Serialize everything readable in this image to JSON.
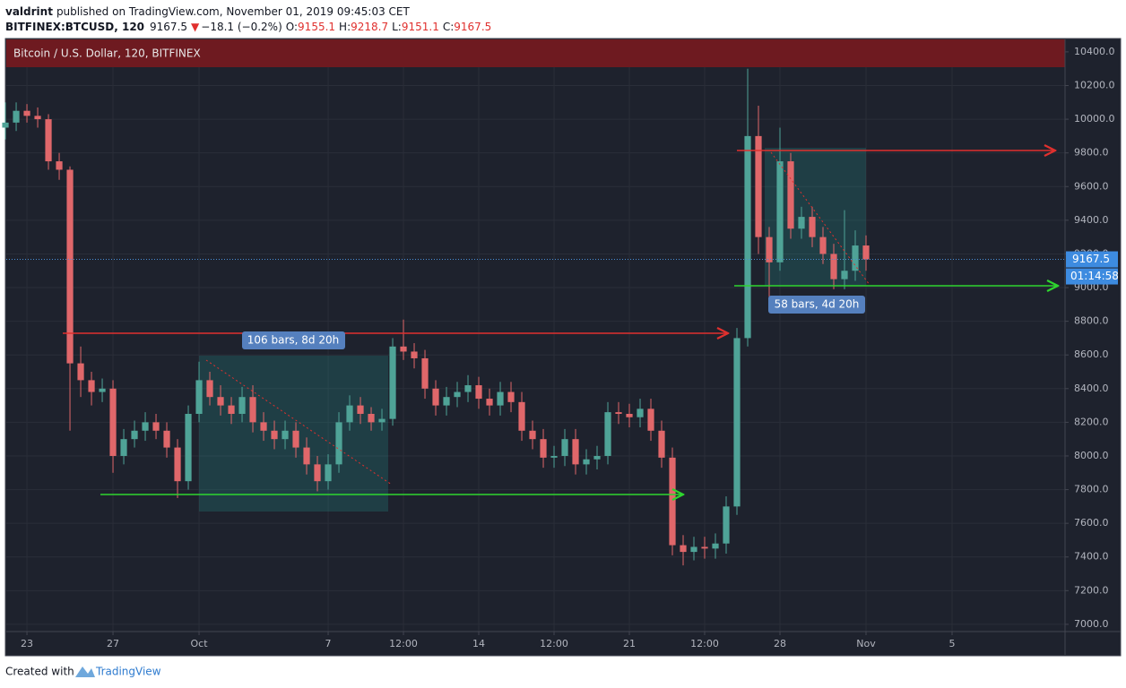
{
  "header": {
    "author": "valdrint",
    "published": "published on TradingView.com, November 01, 2019 09:45:03 CET",
    "symbol": "BITFINEX:BTCUSD, 120",
    "last": "9167.5",
    "arrow": "▼",
    "change": "−18.1 (−0.2%)",
    "ohlc": [
      [
        "O:",
        "9155.1"
      ],
      [
        "H:",
        "9218.7"
      ],
      [
        "L:",
        "9151.1"
      ],
      [
        "C:",
        "9167.5"
      ]
    ]
  },
  "footer": {
    "created": "Created with",
    "brand": "TradingView"
  },
  "chart_data": {
    "type": "candlestick",
    "title": "Bitcoin / U.S. Dollar, 120, BITFINEX",
    "up_color": "#4fa397",
    "down_color": "#e0676a",
    "grid": true,
    "last_price": 9167.5,
    "countdown": "01:14:58",
    "annotations": [
      "106 bars, 8d 20h",
      "58 bars, 4d 20h"
    ],
    "x": [
      -1,
      -0.5,
      0,
      0.5,
      1,
      1.5,
      2,
      2.5,
      3,
      3.5,
      4,
      4.5,
      5,
      5.5,
      6,
      6.5,
      7,
      7.5,
      8,
      8.5,
      9,
      9.5,
      10,
      10.5,
      11,
      11.5,
      12,
      12.5,
      13,
      13.5,
      14,
      14.5,
      15,
      15.5,
      16,
      16.5,
      17,
      17.5,
      18,
      18.5,
      19,
      19.5,
      20,
      20.5,
      21,
      21.5,
      22,
      22.5,
      23,
      23.5,
      24,
      24.5,
      25,
      25.5,
      26,
      26.5,
      27,
      27.5,
      28,
      28.5,
      29,
      29.5,
      30,
      30.5,
      31,
      31.5,
      32,
      32.5,
      33,
      33.5,
      34,
      34.5,
      35,
      35.5,
      36,
      36.5,
      37,
      37.5,
      38,
      38.5,
      39
    ],
    "open": [
      9950,
      9980,
      10050,
      10020,
      10000,
      9750,
      9700,
      8550,
      8450,
      8380,
      8400,
      8000,
      8100,
      8150,
      8200,
      8150,
      8050,
      7850,
      8250,
      8450,
      8350,
      8300,
      8250,
      8350,
      8200,
      8150,
      8100,
      8150,
      8050,
      7950,
      7850,
      7950,
      8200,
      8300,
      8250,
      8200,
      8220,
      8650,
      8620,
      8580,
      8400,
      8300,
      8350,
      8380,
      8420,
      8340,
      8300,
      8380,
      8320,
      8150,
      8100,
      7990,
      8000,
      8100,
      7950,
      7980,
      8000,
      8260,
      8250,
      8230,
      8280,
      8150,
      7990,
      7470,
      7430,
      7460,
      7450,
      7480,
      7700,
      8700,
      9900,
      9300,
      9150,
      9750,
      9350,
      9420,
      9300,
      9200,
      9050,
      9100,
      9250
    ],
    "high": [
      10100,
      10100,
      10090,
      10070,
      10030,
      9800,
      9720,
      8650,
      8500,
      8460,
      8450,
      8160,
      8210,
      8260,
      8250,
      8200,
      8100,
      8300,
      8560,
      8500,
      8420,
      8350,
      8410,
      8420,
      8260,
      8210,
      8210,
      8200,
      8110,
      8000,
      8010,
      8260,
      8360,
      8350,
      8290,
      8280,
      8700,
      8810,
      8670,
      8630,
      8450,
      8410,
      8440,
      8480,
      8470,
      8400,
      8440,
      8440,
      8380,
      8210,
      8160,
      8060,
      8160,
      8160,
      8040,
      8060,
      8320,
      8320,
      8310,
      8340,
      8340,
      8210,
      8050,
      7530,
      7520,
      7520,
      7540,
      7760,
      8760,
      10300,
      10080,
      9360,
      9950,
      9800,
      9480,
      9480,
      9360,
      9260,
      9460,
      9340,
      9310
    ],
    "low": [
      9880,
      9930,
      9980,
      9950,
      9700,
      9640,
      8150,
      8350,
      8300,
      8320,
      7900,
      7950,
      8050,
      8090,
      8100,
      7990,
      7750,
      7800,
      8200,
      8300,
      8240,
      8190,
      8200,
      8140,
      8090,
      8040,
      8040,
      7990,
      7890,
      7790,
      7800,
      7900,
      8150,
      8190,
      8150,
      8150,
      8180,
      8570,
      8520,
      8340,
      8240,
      8240,
      8290,
      8320,
      8280,
      8240,
      8240,
      8260,
      8090,
      8040,
      7930,
      7930,
      7940,
      7890,
      7890,
      7920,
      7950,
      8190,
      8170,
      8170,
      8090,
      7930,
      7410,
      7350,
      7380,
      7390,
      7390,
      7420,
      7650,
      8650,
      9200,
      8900,
      9100,
      9290,
      9290,
      9240,
      9140,
      8990,
      8990,
      9040,
      9100
    ],
    "close": [
      9980,
      10050,
      10020,
      10000,
      9750,
      9700,
      8550,
      8450,
      8380,
      8400,
      8000,
      8100,
      8150,
      8200,
      8150,
      8050,
      7850,
      8250,
      8450,
      8350,
      8300,
      8250,
      8350,
      8200,
      8150,
      8100,
      8150,
      8050,
      7950,
      7850,
      7950,
      8200,
      8300,
      8250,
      8200,
      8220,
      8650,
      8620,
      8580,
      8400,
      8300,
      8350,
      8380,
      8420,
      8340,
      8300,
      8380,
      8320,
      8150,
      8100,
      7990,
      8000,
      8100,
      7950,
      7980,
      8000,
      8260,
      8250,
      8230,
      8280,
      8150,
      7990,
      7470,
      7430,
      7460,
      7450,
      7480,
      7700,
      8700,
      9900,
      9300,
      9150,
      9750,
      9350,
      9420,
      9300,
      9200,
      9050,
      9100,
      9250,
      9167.5
    ],
    "xlim": [
      -0.96,
      48.25
    ],
    "ylim": [
      6957,
      10474
    ],
    "xticks": [
      {
        "value": 0,
        "label": "23"
      },
      {
        "value": 4,
        "label": "27"
      },
      {
        "value": 8,
        "label": "Oct"
      },
      {
        "value": 14,
        "label": "7"
      },
      {
        "value": 17.5,
        "label": "12:00"
      },
      {
        "value": 21,
        "label": "14"
      },
      {
        "value": 24.5,
        "label": "12:00"
      },
      {
        "value": 28,
        "label": "21"
      },
      {
        "value": 31.5,
        "label": "12:00"
      },
      {
        "value": 35,
        "label": "28"
      },
      {
        "value": 39,
        "label": "Nov"
      },
      {
        "value": 43,
        "label": "5"
      }
    ],
    "yticks": [
      {
        "value": 7000,
        "label": "7000.0"
      },
      {
        "value": 7200,
        "label": "7200.0"
      },
      {
        "value": 7400,
        "label": "7400.0"
      },
      {
        "value": 7600,
        "label": "7600.0"
      },
      {
        "value": 7800,
        "label": "7800.0"
      },
      {
        "value": 8000,
        "label": "8000.0"
      },
      {
        "value": 8200,
        "label": "8200.0"
      },
      {
        "value": 8400,
        "label": "8400.0"
      },
      {
        "value": 8600,
        "label": "8600.0"
      },
      {
        "value": 8800,
        "label": "8800.0"
      },
      {
        "value": 9000,
        "label": "9000.0"
      },
      {
        "value": 9200,
        "label": "9200.0"
      },
      {
        "value": 9400,
        "label": "9400.0"
      },
      {
        "value": 9600,
        "label": "9600.0"
      },
      {
        "value": 9800,
        "label": "9800.0"
      },
      {
        "value": 10000,
        "label": "10000.0"
      },
      {
        "value": 10200,
        "label": "10200.0"
      },
      {
        "value": 10400,
        "label": "10400.0"
      }
    ]
  }
}
